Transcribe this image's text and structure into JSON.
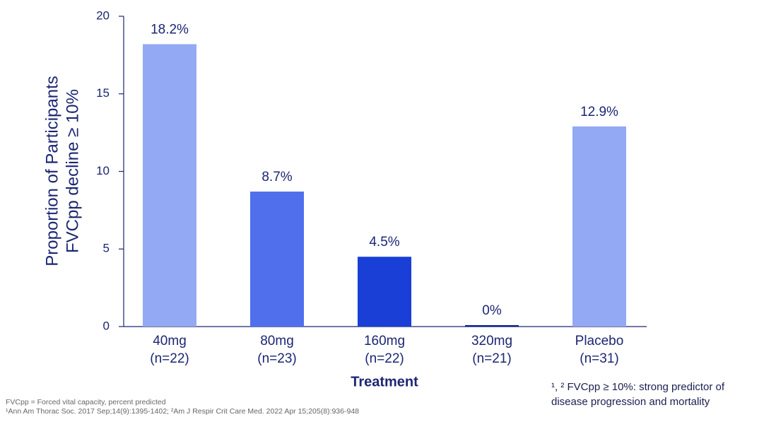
{
  "chart_data": {
    "type": "bar",
    "ylabel": [
      "Proportion of Participants",
      "FVCpp decline ≥ 10%"
    ],
    "xlabel": "Treatment",
    "categories": [
      [
        "40mg",
        "(n=22)"
      ],
      [
        "80mg",
        "(n=23)"
      ],
      [
        "160mg",
        "(n=22)"
      ],
      [
        "320mg",
        "(n=21)"
      ],
      [
        "Placebo",
        "(n=31)"
      ]
    ],
    "values": [
      18.2,
      8.7,
      4.5,
      0,
      12.9
    ],
    "value_labels": [
      "18.2%",
      "8.7%",
      "4.5%",
      "0%",
      "12.9%"
    ],
    "colors": [
      "#93a9f3",
      "#4f6fed",
      "#1a3fd6",
      "#0d1f8c",
      "#93a9f3"
    ],
    "ylim": [
      0,
      20
    ],
    "yticks": [
      0,
      5,
      10,
      15,
      20
    ],
    "annotation": [
      "¹, ² FVCpp ≥ 10%: strong predictor of",
      "disease progression and mortality"
    ],
    "footnotes": [
      "FVCpp = Forced vital capacity, percent predicted",
      "¹Ann Am Thorac Soc. 2017 Sep;14(9):1395-1402; ²Am J Respir Crit Care Med. 2022 Apr 15;205(8):936-948"
    ]
  }
}
